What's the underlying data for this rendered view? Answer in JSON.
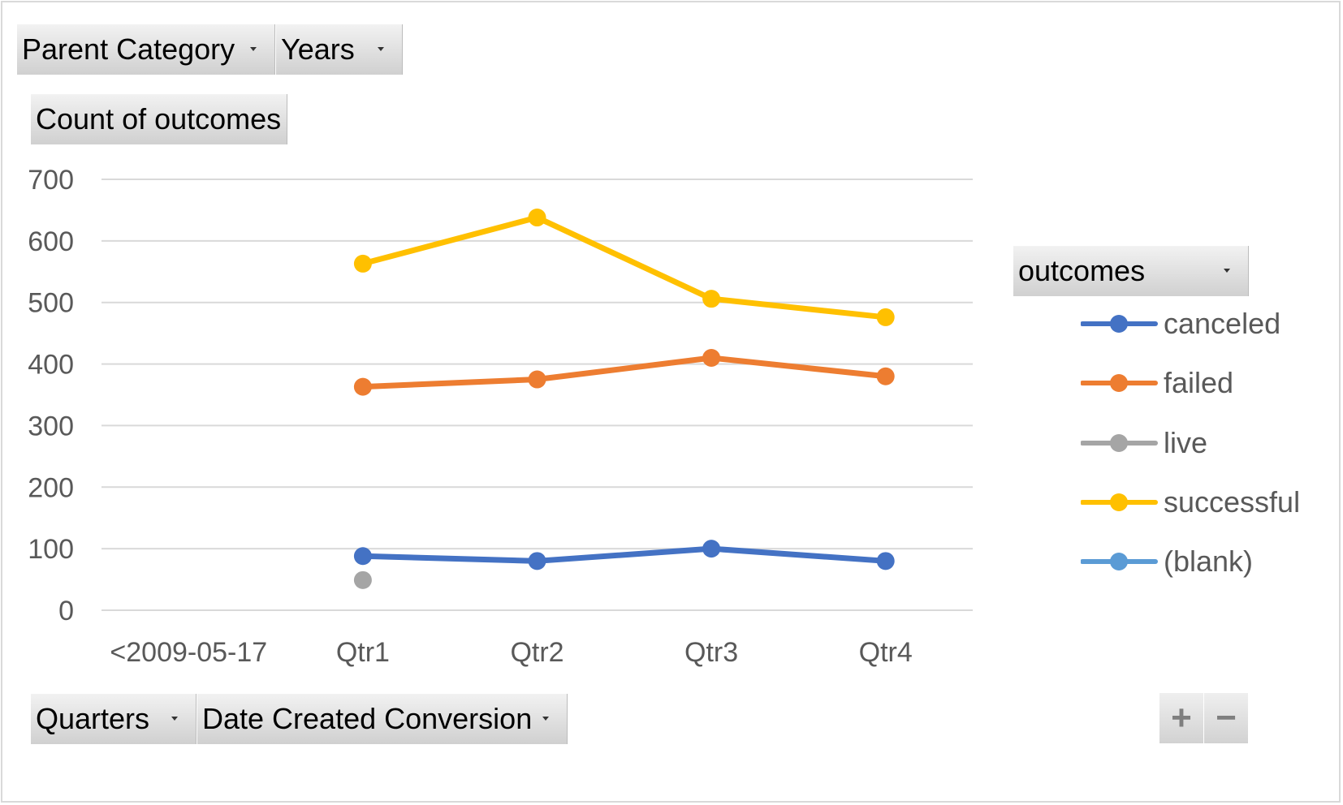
{
  "filters": {
    "parent_category": "Parent Category",
    "years": "Years",
    "values_field": "Count of outcomes",
    "legend_field": "outcomes",
    "quarters": "Quarters",
    "date_created": "Date Created Conversion"
  },
  "zoom": {
    "plus": "+",
    "minus": "−"
  },
  "colors": {
    "canceled": "#4472c4",
    "failed": "#ed7d31",
    "live": "#a5a5a5",
    "successful": "#ffc000",
    "blank": "#5b9bd5",
    "grid": "#d9d9d9",
    "axis_text": "#595959"
  },
  "chart_data": {
    "type": "line",
    "title": "",
    "xlabel": "",
    "ylabel": "",
    "categories": [
      "<2009-05-17",
      "Qtr1",
      "Qtr2",
      "Qtr3",
      "Qtr4"
    ],
    "ylim": [
      0,
      700
    ],
    "yticks": [
      0,
      100,
      200,
      300,
      400,
      500,
      600,
      700
    ],
    "grid": true,
    "legend_position": "right",
    "series": [
      {
        "name": "canceled",
        "color": "#4472c4",
        "values": [
          null,
          88,
          80,
          100,
          80
        ]
      },
      {
        "name": "failed",
        "color": "#ed7d31",
        "values": [
          null,
          363,
          375,
          410,
          380
        ]
      },
      {
        "name": "live",
        "color": "#a5a5a5",
        "values": [
          null,
          49,
          null,
          null,
          null
        ]
      },
      {
        "name": "successful",
        "color": "#ffc000",
        "values": [
          null,
          563,
          638,
          506,
          476
        ]
      },
      {
        "name": "(blank)",
        "color": "#5b9bd5",
        "values": [
          null,
          null,
          null,
          null,
          null
        ]
      }
    ]
  }
}
